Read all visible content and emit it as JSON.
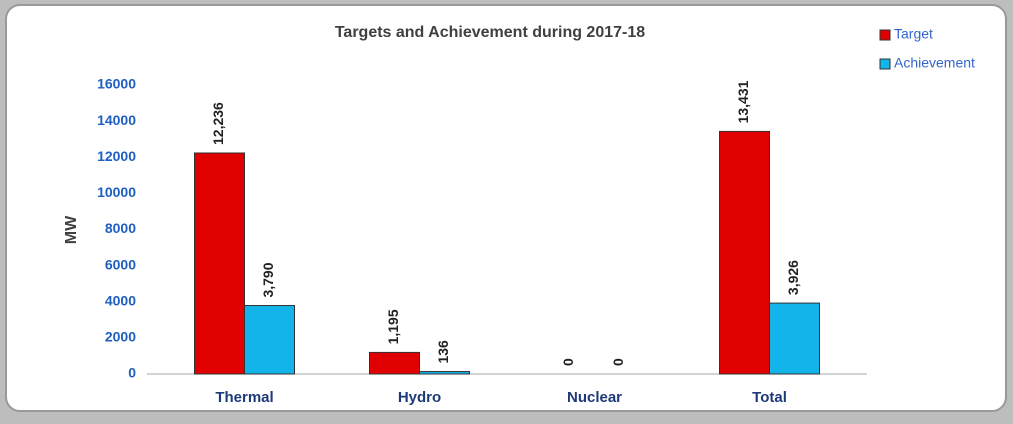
{
  "chart_data": {
    "type": "bar",
    "title": "Targets and Achievement during  2017-18",
    "y_label": "MW",
    "categories": [
      "Thermal",
      "Hydro",
      "Nuclear",
      "Total"
    ],
    "series": [
      {
        "name": "Target",
        "color": "#e00000",
        "values": [
          12236,
          1195,
          0,
          13431
        ],
        "value_labels": [
          "12,236",
          "1,195",
          "0",
          "13,431"
        ]
      },
      {
        "name": "Achievement",
        "color": "#12b4ea",
        "values": [
          3790,
          136,
          0,
          3926
        ],
        "value_labels": [
          "3,790",
          "136",
          "0",
          "3,926"
        ]
      }
    ],
    "ylim": [
      0,
      16000
    ],
    "yticks": [
      0,
      2000,
      4000,
      6000,
      8000,
      10000,
      12000,
      14000,
      16000
    ],
    "legend": "top-right"
  }
}
